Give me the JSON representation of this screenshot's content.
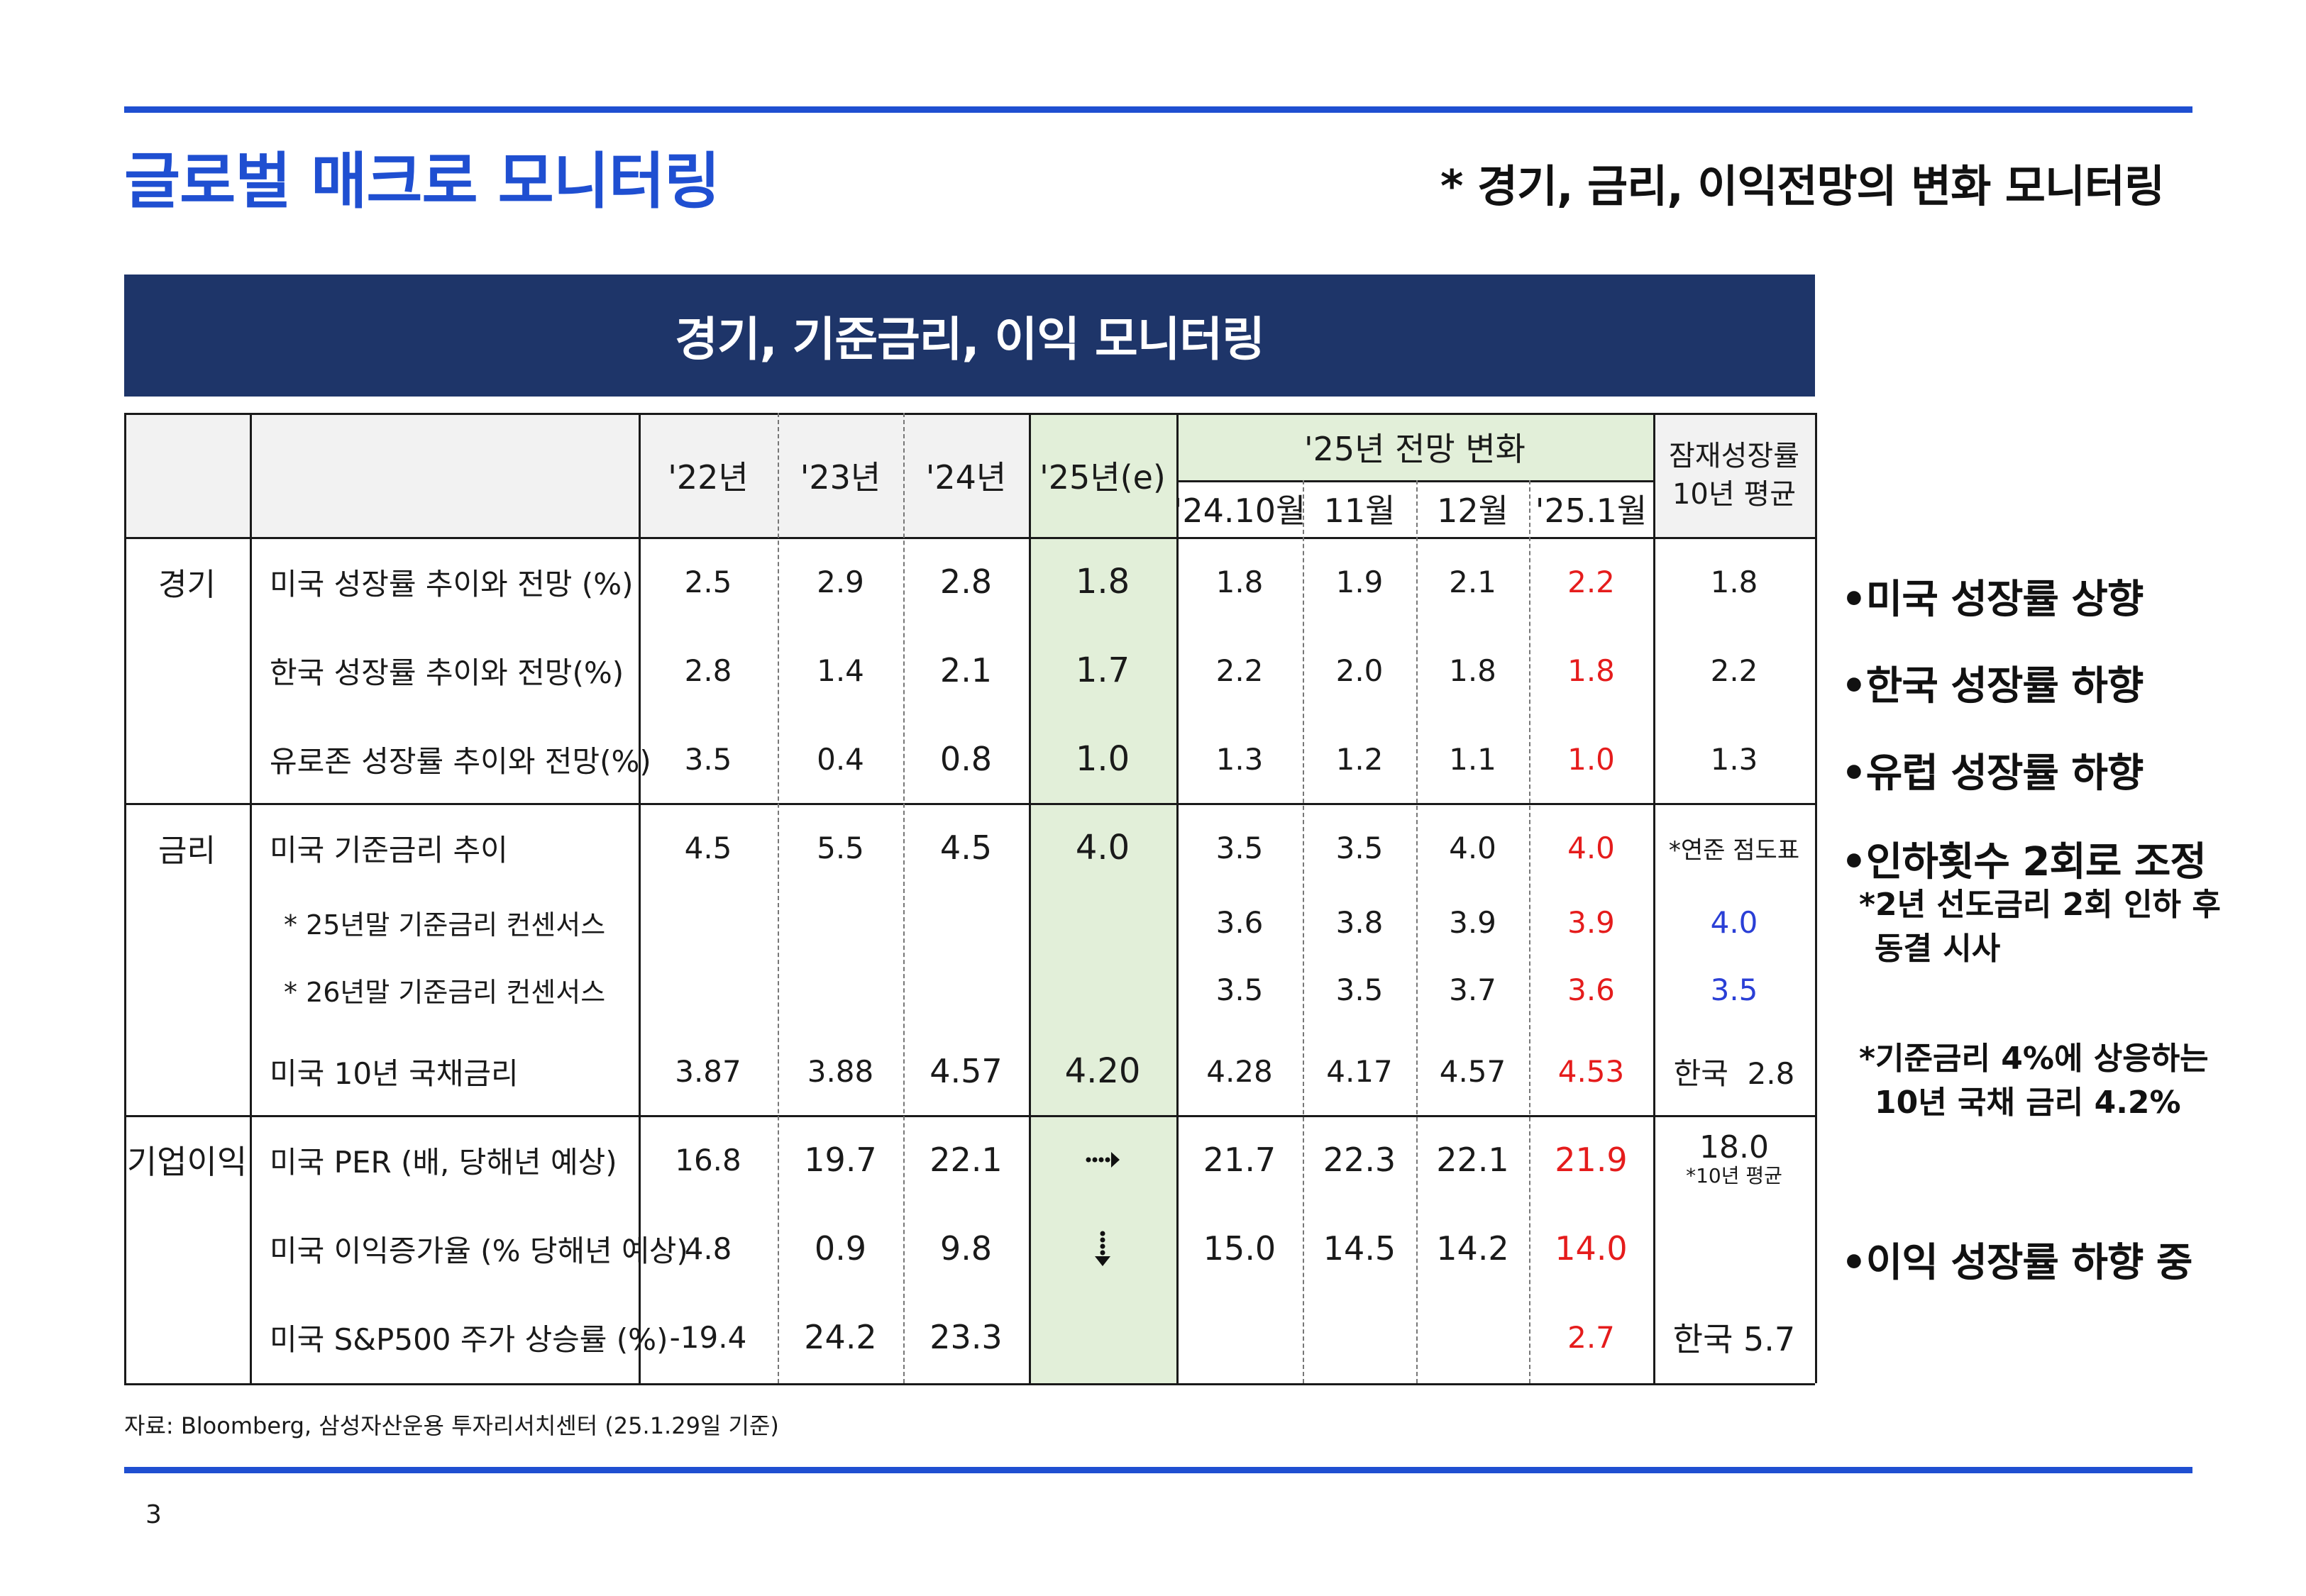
{
  "header": {
    "title": "글로벌 매크로 모니터링",
    "subtitle": "* 경기, 금리, 이익전망의 변화 모니터링"
  },
  "banner": {
    "title": "경기, 기준금리, 이익 모니터링"
  },
  "table": {
    "headers": {
      "y22": "'22년",
      "y23": "'23년",
      "y24": "'24년",
      "y25e": "'25년(e)",
      "forecast_group": "'25년 전망 변화",
      "m_2410": "'24.10월",
      "m_11": "11월",
      "m_12": "12월",
      "m_2501": "'25.1월",
      "potential_1": "잠재성장률",
      "potential_2": "10년 평균"
    },
    "groups": {
      "economy": "경기",
      "rates": "금리",
      "earnings": "기업이익"
    },
    "rows": [
      {
        "label": "미국 성장률 추이와 전망 (%)",
        "y22": "2.5",
        "y23": "2.9",
        "y24": "2.8",
        "y25e": "1.8",
        "m2410": "1.8",
        "m11": "1.9",
        "m12": "2.1",
        "m2501": "2.2",
        "pot": "1.8"
      },
      {
        "label": "한국 성장률 추이와 전망(%)",
        "y22": "2.8",
        "y23": "1.4",
        "y24": "2.1",
        "y25e": "1.7",
        "m2410": "2.2",
        "m11": "2.0",
        "m12": "1.8",
        "m2501": "1.8",
        "pot": "2.2"
      },
      {
        "label": "유로존 성장률 추이와 전망(%)",
        "y22": "3.5",
        "y23": "0.4",
        "y24": "0.8",
        "y25e": "1.0",
        "m2410": "1.3",
        "m11": "1.2",
        "m12": "1.1",
        "m2501": "1.0",
        "pot": "1.3"
      },
      {
        "label": "미국 기준금리 추이",
        "y22": "4.5",
        "y23": "5.5",
        "y24": "4.5",
        "y25e": "4.0",
        "m2410": "3.5",
        "m11": "3.5",
        "m12": "4.0",
        "m2501": "4.0",
        "pot": "*연준 점도표"
      },
      {
        "label": "* 25년말 기준금리 컨센서스",
        "y22": "",
        "y23": "",
        "y24": "",
        "y25e": "",
        "m2410": "3.6",
        "m11": "3.8",
        "m12": "3.9",
        "m2501": "3.9",
        "pot": "4.0"
      },
      {
        "label": "* 26년말 기준금리 컨센서스",
        "y22": "",
        "y23": "",
        "y24": "",
        "y25e": "",
        "m2410": "3.5",
        "m11": "3.5",
        "m12": "3.7",
        "m2501": "3.6",
        "pot": "3.5"
      },
      {
        "label": "미국 10년 국채금리",
        "y22": "3.87",
        "y23": "3.88",
        "y24": "4.57",
        "y25e": "4.20",
        "m2410": "4.28",
        "m11": "4.17",
        "m12": "4.57",
        "m2501": "4.53",
        "pot": "한국  2.8"
      },
      {
        "label": "미국 PER (배, 당해년 예상)",
        "y22": "16.8",
        "y23": "19.7",
        "y24": "22.1",
        "y25e": "",
        "m2410": "21.7",
        "m11": "22.3",
        "m12": "22.1",
        "m2501": "21.9",
        "pot": "18.0",
        "pot_note": "*10년 평균"
      },
      {
        "label": "미국 이익증가율 (% 당해년 예상)",
        "y22": "4.8",
        "y23": "0.9",
        "y24": "9.8",
        "y25e": "",
        "m2410": "15.0",
        "m11": "14.5",
        "m12": "14.2",
        "m2501": "14.0",
        "pot": ""
      },
      {
        "label": "미국 S&P500 주가 상승률 (%)",
        "y22": "-19.4",
        "y23": "24.2",
        "y24": "23.3",
        "y25e": "",
        "m2410": "",
        "m11": "",
        "m12": "",
        "m2501": "2.7",
        "pot": "한국 5.7"
      }
    ]
  },
  "side_notes": {
    "b1": "•미국 성장률 상향",
    "b2": "•한국 성장률 하향",
    "b3": "•유럽 성장률 하향",
    "b4": "•인하횟수 2회로 조정",
    "n1a": "*2년 선도금리 2회 인하 후",
    "n1b": "동결 시사",
    "n2a": "*기준금리 4%에 상응하는",
    "n2b": "10년 국채 금리 4.2%",
    "b5": "•이익 성장률 하향 중"
  },
  "colors": {
    "accent": "#1f4fd1",
    "banner": "#1e3569",
    "highlight": "#e2efd9",
    "red": "#e51c1c",
    "blue": "#2a3fd6"
  },
  "icons": {
    "right_arrow": "dotted-right-arrow-icon",
    "down_arrow": "dotted-down-arrow-icon"
  },
  "footer": {
    "source": "자료: Bloomberg, 삼성자산운용 투자리서치센터 (25.1.29일  기준)",
    "page_number": "3"
  }
}
